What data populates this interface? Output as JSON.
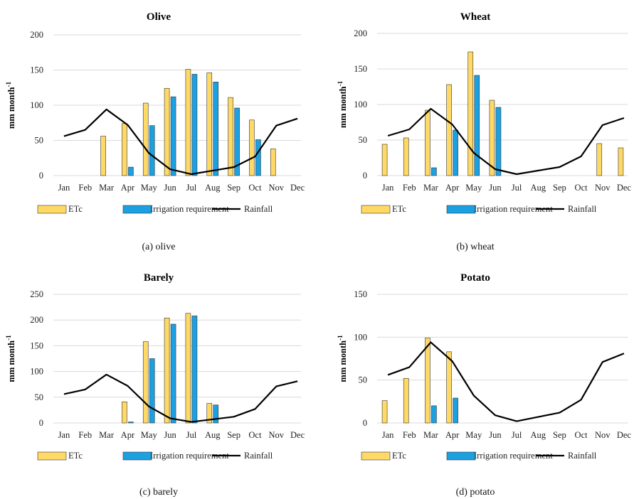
{
  "legend": {
    "etc": "ETc",
    "irrigation": "Irrigation requirement",
    "rainfall": "Rainfall"
  },
  "y_axis_label": {
    "text": "mm month",
    "superscript": "-1"
  },
  "colors": {
    "etc": "#FFD966",
    "irrigation": "#1BA1E2",
    "rainfall": "#000000",
    "grid": "#D9D9D9",
    "bar_border": "#333333"
  },
  "chart_data": [
    {
      "type": "bar",
      "title": "Olive",
      "caption": "(a) olive",
      "ylabel_shown": true,
      "ylim": [
        0,
        200
      ],
      "yticks": [
        0,
        50,
        100,
        150,
        200
      ],
      "categories": [
        "Jan",
        "Feb",
        "Mar",
        "Apr",
        "May",
        "Jun",
        "Jul",
        "Aug",
        "Sep",
        "Oct",
        "Nov",
        "Dec"
      ],
      "series": [
        {
          "name": "ETc",
          "kind": "bar",
          "values": [
            null,
            null,
            56,
            74,
            103,
            124,
            151,
            146,
            111,
            79,
            38,
            null
          ]
        },
        {
          "name": "Irrigation requirement",
          "kind": "bar",
          "values": [
            null,
            null,
            null,
            12,
            71,
            112,
            144,
            133,
            96,
            51,
            null,
            null
          ]
        },
        {
          "name": "Rainfall",
          "kind": "line",
          "values": [
            56,
            65,
            94,
            72,
            32,
            9,
            2,
            7,
            12,
            27,
            71,
            81
          ]
        }
      ]
    },
    {
      "type": "bar",
      "title": "Wheat",
      "caption": "(b) wheat",
      "ylabel_shown": true,
      "ylim": [
        0,
        200
      ],
      "yticks": [
        0,
        50,
        100,
        150,
        200
      ],
      "categories": [
        "Jan",
        "Feb",
        "Mar",
        "Apr",
        "May",
        "Jun",
        "Jul",
        "Aug",
        "Sep",
        "Oct",
        "Nov",
        "Dec"
      ],
      "series": [
        {
          "name": "ETc",
          "kind": "bar",
          "values": [
            44,
            53,
            92,
            128,
            174,
            106,
            null,
            null,
            null,
            null,
            45,
            39
          ]
        },
        {
          "name": "Irrigation requirement",
          "kind": "bar",
          "values": [
            null,
            null,
            11,
            64,
            141,
            96,
            null,
            null,
            null,
            null,
            null,
            null
          ]
        },
        {
          "name": "Rainfall",
          "kind": "line",
          "values": [
            56,
            65,
            94,
            72,
            32,
            9,
            2,
            7,
            12,
            27,
            71,
            81
          ]
        }
      ]
    },
    {
      "type": "bar",
      "title": "Barely",
      "caption": "(c) barely",
      "ylabel_shown": true,
      "ylim": [
        0,
        250
      ],
      "yticks": [
        0,
        50,
        100,
        150,
        200,
        250
      ],
      "categories": [
        "Jan",
        "Feb",
        "Mar",
        "Apr",
        "May",
        "Jun",
        "Jul",
        "Aug",
        "Sep",
        "Oct",
        "Nov",
        "Dec"
      ],
      "series": [
        {
          "name": "ETc",
          "kind": "bar",
          "values": [
            null,
            null,
            null,
            41,
            158,
            204,
            213,
            38,
            null,
            null,
            null,
            null
          ]
        },
        {
          "name": "Irrigation requirement",
          "kind": "bar",
          "values": [
            null,
            null,
            null,
            2,
            125,
            192,
            208,
            35,
            null,
            null,
            null,
            null
          ]
        },
        {
          "name": "Rainfall",
          "kind": "line",
          "values": [
            56,
            65,
            94,
            72,
            32,
            9,
            2,
            7,
            12,
            27,
            71,
            81
          ]
        }
      ]
    },
    {
      "type": "bar",
      "title": "Potato",
      "caption": "(d) potato",
      "ylabel_shown": true,
      "ylim": [
        0,
        150
      ],
      "yticks": [
        0,
        50,
        100,
        150
      ],
      "categories": [
        "Jan",
        "Feb",
        "Mar",
        "Apr",
        "May",
        "Jun",
        "Jul",
        "Aug",
        "Sep",
        "Oct",
        "Nov",
        "Dec"
      ],
      "series": [
        {
          "name": "ETc",
          "kind": "bar",
          "values": [
            26,
            52,
            99,
            83,
            null,
            null,
            null,
            null,
            null,
            null,
            null,
            null
          ]
        },
        {
          "name": "Irrigation requirement",
          "kind": "bar",
          "values": [
            null,
            null,
            20,
            29,
            null,
            null,
            null,
            null,
            null,
            null,
            null,
            null
          ]
        },
        {
          "name": "Rainfall",
          "kind": "line",
          "values": [
            56,
            65,
            94,
            72,
            32,
            9,
            2,
            7,
            12,
            27,
            71,
            81
          ]
        }
      ]
    }
  ]
}
